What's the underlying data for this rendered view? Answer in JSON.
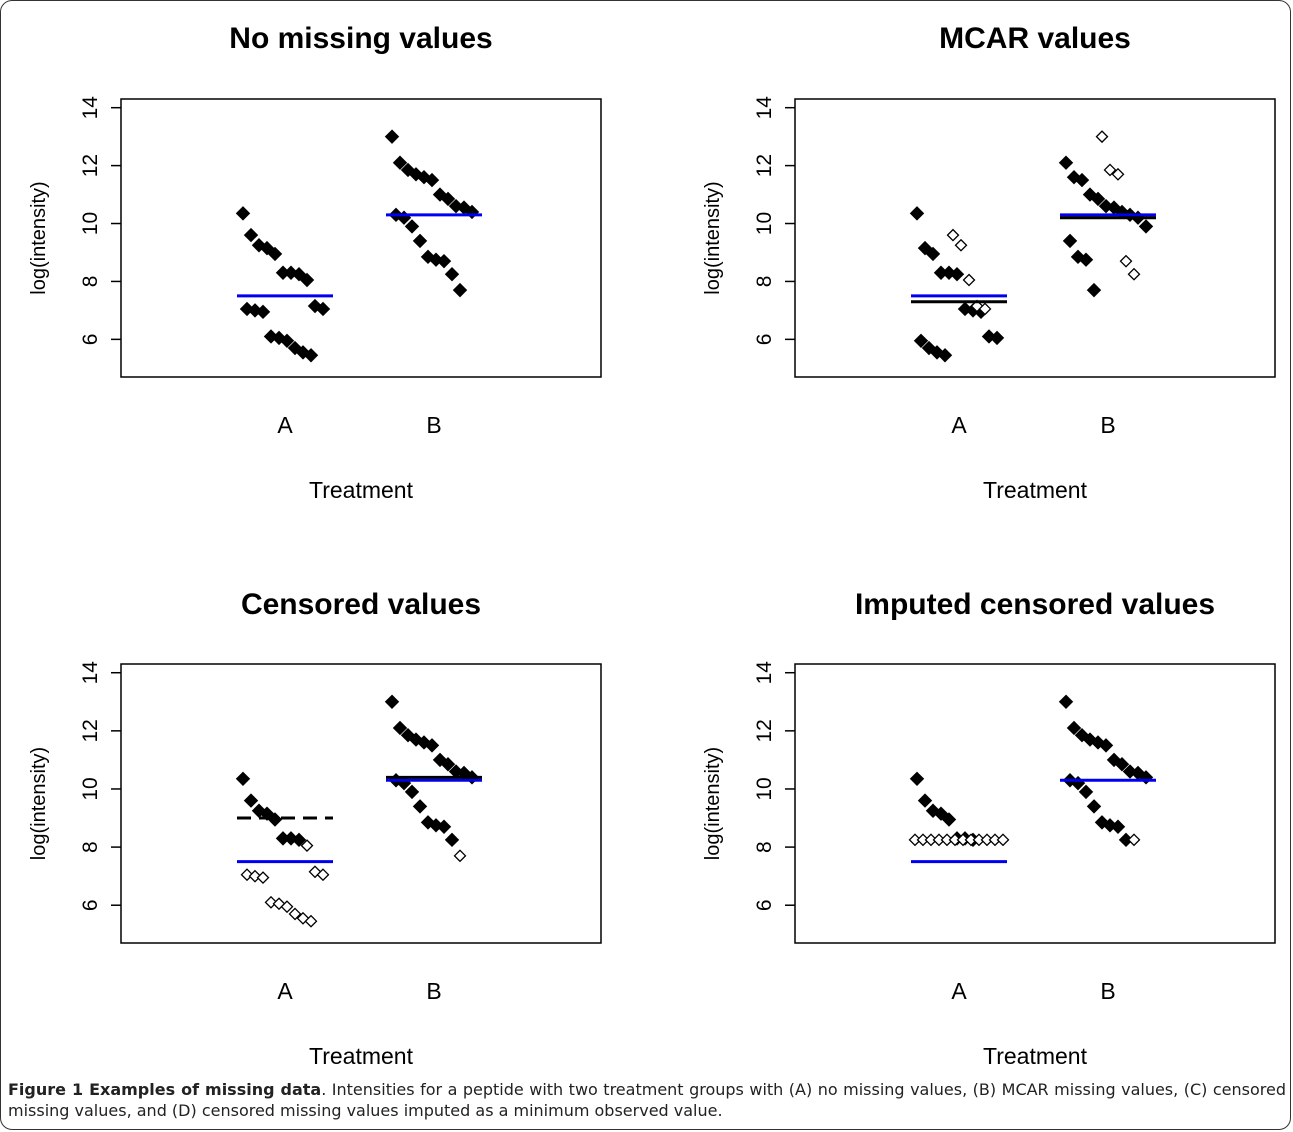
{
  "caption": {
    "label": "Figure 1 Examples of missing data",
    "text": ". Intensities for a peptide with two treatment groups with (A) no missing values, (B) MCAR missing values, (C) censored missing values, and (D) censored missing values imputed as a minimum observed value."
  },
  "colors": {
    "blue_line": "#0000ee",
    "black_line": "#000000",
    "point": "#000000"
  },
  "chart_data": [
    {
      "type": "scatter",
      "title": "No missing values",
      "xlabel": "Treatment",
      "ylabel": "log(intensity)",
      "categories": [
        "A",
        "B"
      ],
      "ylim": [
        4.7,
        14.3
      ],
      "yticks": [
        "6",
        "8",
        "10",
        "12",
        "14"
      ],
      "mean_lines": [
        {
          "group": "A",
          "y": 7.5,
          "color": "#0000ee"
        },
        {
          "group": "B",
          "y": 10.3,
          "color": "#0000ee"
        }
      ],
      "points": {
        "A": {
          "filled": [
            10.35,
            9.6,
            9.25,
            9.15,
            8.95,
            8.3,
            8.3,
            8.25,
            8.05,
            7.15,
            7.05,
            7.05,
            7.0,
            6.95,
            6.1,
            6.05,
            5.95,
            5.7,
            5.55,
            5.45
          ],
          "open": []
        },
        "B": {
          "filled": [
            13.0,
            12.1,
            11.85,
            11.7,
            11.6,
            11.5,
            11.0,
            10.85,
            10.6,
            10.55,
            10.4,
            10.3,
            10.2,
            9.9,
            9.4,
            8.85,
            8.75,
            8.7,
            8.25,
            7.7
          ],
          "open": []
        }
      }
    },
    {
      "type": "scatter",
      "title": "MCAR values",
      "xlabel": "Treatment",
      "ylabel": "log(intensity)",
      "categories": [
        "A",
        "B"
      ],
      "ylim": [
        4.7,
        14.3
      ],
      "yticks": [
        "6",
        "8",
        "10",
        "12",
        "14"
      ],
      "mean_lines": [
        {
          "group": "A",
          "y": 7.5,
          "color": "#0000ee"
        },
        {
          "group": "A",
          "y": 7.3,
          "color": "#000000"
        },
        {
          "group": "B",
          "y": 10.3,
          "color": "#0000ee"
        },
        {
          "group": "B",
          "y": 10.2,
          "color": "#000000"
        }
      ],
      "points": {
        "A": {
          "filled": [
            10.35,
            9.15,
            8.95,
            8.3,
            8.3,
            8.25,
            7.05,
            7.0,
            6.95,
            6.1,
            6.05,
            5.95,
            5.7,
            5.55,
            5.45
          ],
          "open": [
            9.6,
            9.25,
            8.05,
            7.15,
            7.05
          ]
        },
        "B": {
          "filled": [
            12.1,
            11.6,
            11.5,
            11.0,
            10.85,
            10.6,
            10.55,
            10.4,
            10.3,
            10.2,
            9.9,
            9.4,
            8.85,
            8.75,
            7.7
          ],
          "open": [
            13.0,
            11.85,
            11.7,
            8.7,
            8.25
          ]
        }
      }
    },
    {
      "type": "scatter",
      "title": "Censored values",
      "xlabel": "Treatment",
      "ylabel": "log(intensity)",
      "categories": [
        "A",
        "B"
      ],
      "ylim": [
        4.7,
        14.3
      ],
      "yticks": [
        "6",
        "8",
        "10",
        "12",
        "14"
      ],
      "mean_lines": [
        {
          "group": "A",
          "y": 7.5,
          "color": "#0000ee"
        },
        {
          "group": "A",
          "y": 9.0,
          "color": "#000000",
          "dashed": true
        },
        {
          "group": "B",
          "y": 10.3,
          "color": "#0000ee"
        },
        {
          "group": "B",
          "y": 10.4,
          "color": "#000000"
        }
      ],
      "points": {
        "A": {
          "filled": [
            10.35,
            9.6,
            9.25,
            9.15,
            8.95,
            8.3,
            8.3,
            8.25
          ],
          "open": [
            8.05,
            7.15,
            7.05,
            7.05,
            7.0,
            6.95,
            6.1,
            6.05,
            5.95,
            5.7,
            5.55,
            5.45
          ]
        },
        "B": {
          "filled": [
            13.0,
            12.1,
            11.85,
            11.7,
            11.6,
            11.5,
            11.0,
            10.85,
            10.6,
            10.55,
            10.4,
            10.3,
            10.2,
            9.9,
            9.4,
            8.85,
            8.75,
            8.7,
            8.25
          ],
          "open": [
            7.7
          ]
        }
      }
    },
    {
      "type": "scatter",
      "title": "Imputed censored values",
      "xlabel": "Treatment",
      "ylabel": "log(intensity)",
      "categories": [
        "A",
        "B"
      ],
      "ylim": [
        4.7,
        14.3
      ],
      "yticks": [
        "6",
        "8",
        "10",
        "12",
        "14"
      ],
      "mean_lines": [
        {
          "group": "A",
          "y": 7.5,
          "color": "#0000ee"
        },
        {
          "group": "B",
          "y": 10.3,
          "color": "#0000ee"
        }
      ],
      "points": {
        "A": {
          "filled": [
            10.35,
            9.6,
            9.25,
            9.15,
            8.95,
            8.3,
            8.3,
            8.25
          ],
          "open": [
            8.25,
            8.25,
            8.25,
            8.25,
            8.25,
            8.25,
            8.25,
            8.25,
            8.25,
            8.25,
            8.25,
            8.25
          ]
        },
        "B": {
          "filled": [
            13.0,
            12.1,
            11.85,
            11.7,
            11.6,
            11.5,
            11.0,
            10.85,
            10.6,
            10.55,
            10.4,
            10.3,
            10.2,
            9.9,
            9.4,
            8.85,
            8.75,
            8.7,
            8.25
          ],
          "open": [
            8.25
          ]
        }
      }
    }
  ]
}
